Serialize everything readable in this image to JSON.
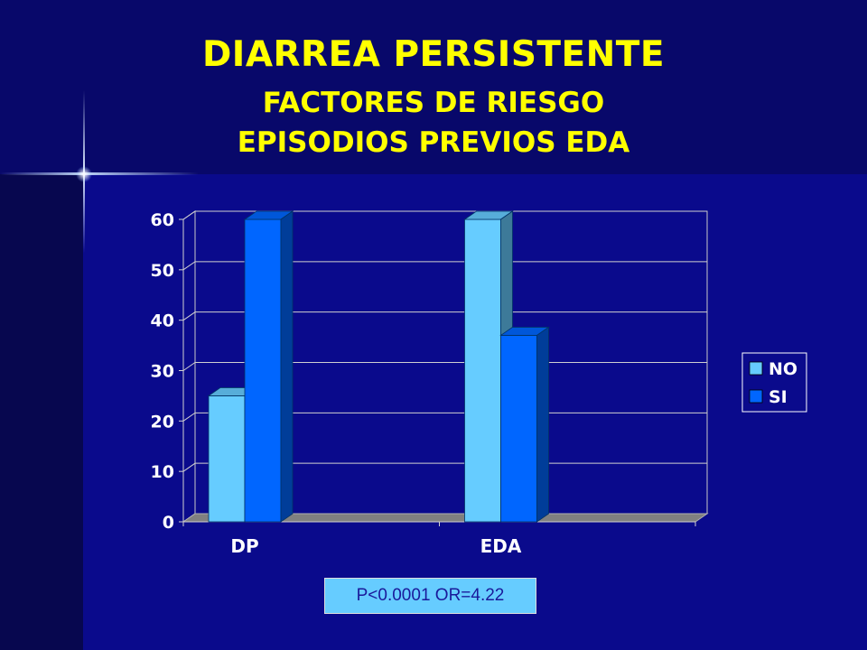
{
  "title": {
    "line1": "DIARREA PERSISTENTE",
    "line2": "FACTORES DE RIESGO",
    "line3": "EPISODIOS PREVIOS EDA"
  },
  "stat_text": "P<0.0001 OR=4.22",
  "chart_data": {
    "type": "bar",
    "categories": [
      "DP",
      "EDA"
    ],
    "series": [
      {
        "name": "NO",
        "values": [
          25,
          60
        ],
        "color": "#66ccff"
      },
      {
        "name": "SI",
        "values": [
          60,
          37
        ],
        "color": "#0066ff"
      }
    ],
    "ylim": [
      0,
      60
    ],
    "yticks": [
      0,
      10,
      20,
      30,
      40,
      50,
      60
    ],
    "grid": true,
    "legend": "right",
    "title": "",
    "xlabel": "",
    "ylabel": ""
  },
  "colors": {
    "background": "#0a0a8c",
    "title_text": "#ffff00",
    "axis_text": "#ffffff",
    "floor": "#808080"
  }
}
